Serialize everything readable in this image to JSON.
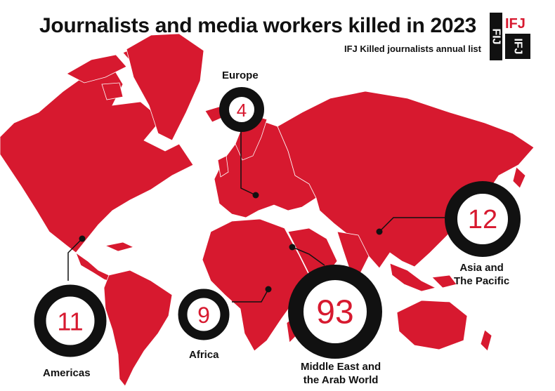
{
  "header": {
    "title": "Journalists and media workers killed in 2023",
    "subtitle": "IFJ Killed journalists annual list"
  },
  "logo": {
    "top_text": "IFJ",
    "side_text": "FIJ",
    "brand_color": "#d7192f"
  },
  "colors": {
    "land": "#d7192f",
    "ring": "#111111",
    "number": "#d7192f"
  },
  "regions": [
    {
      "id": "europe",
      "label": "Europe",
      "count": "4"
    },
    {
      "id": "asia_pacific",
      "label_line1": "Asia and",
      "label_line2": "The Pacific",
      "count": "12"
    },
    {
      "id": "americas",
      "label": "Americas",
      "count": "11"
    },
    {
      "id": "africa",
      "label": "Africa",
      "count": "9"
    },
    {
      "id": "middle_east",
      "label_line1": "Middle East and",
      "label_line2": "the Arab World",
      "count": "93"
    }
  ]
}
